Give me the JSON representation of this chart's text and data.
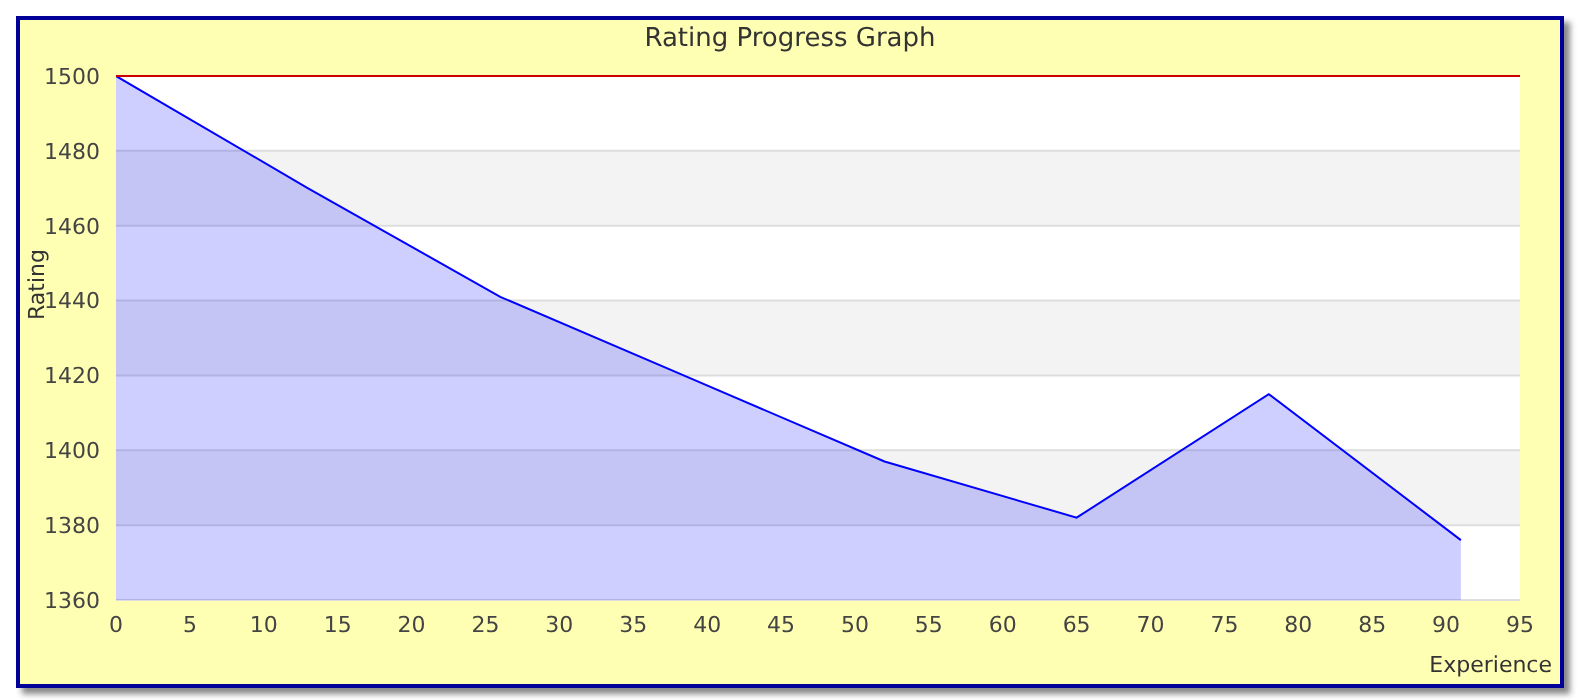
{
  "chart_data": {
    "type": "area",
    "title": "Rating Progress Graph",
    "xlabel": "Experience",
    "ylabel": "Rating",
    "x": [
      0,
      13,
      26,
      39,
      52,
      65,
      78,
      91
    ],
    "series": [
      {
        "color": "#0000ff",
        "values": [
          1500,
          1470,
          1441,
          1419,
          1397,
          1382,
          1415,
          1376
        ]
      }
    ],
    "xlim": [
      0,
      95
    ],
    "xticks": [
      0,
      5,
      10,
      15,
      20,
      25,
      30,
      35,
      40,
      45,
      50,
      55,
      60,
      65,
      70,
      75,
      80,
      85,
      90,
      95
    ],
    "ylim": [
      1360,
      1500
    ],
    "yticks": [
      1360,
      1380,
      1400,
      1420,
      1440,
      1460,
      1480,
      1500
    ],
    "grid": "y",
    "marker": "none",
    "ref_lines": [
      {
        "axis": "y",
        "value": 1500,
        "color": "#cc0000"
      }
    ]
  }
}
